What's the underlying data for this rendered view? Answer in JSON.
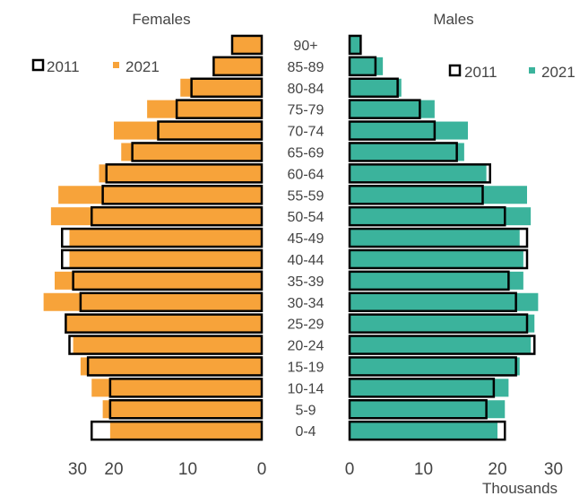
{
  "chart_data": {
    "type": "bar",
    "subtype": "population-pyramid",
    "xlabel": "Thousands",
    "axis_range": [
      0,
      30
    ],
    "ticks": [
      "30",
      "20",
      "10",
      "0"
    ],
    "ticks_right": [
      "0",
      "10",
      "20",
      "30"
    ],
    "age_groups": [
      "90+",
      "85-89",
      "80-84",
      "75-79",
      "70-74",
      "65-69",
      "60-64",
      "55-59",
      "50-54",
      "45-49",
      "40-44",
      "35-39",
      "30-34",
      "25-29",
      "20-24",
      "15-19",
      "10-14",
      "5-9",
      "0-4"
    ],
    "panels": [
      {
        "title": "Females",
        "side": "left",
        "legend": {
          "label_2011": "2011",
          "label_2021": "2021"
        },
        "fill_color": "#F7A33A",
        "series": [
          {
            "name": "2011",
            "style": "outline",
            "values": [
              4,
              6.5,
              9.5,
              11.5,
              14,
              17.5,
              21,
              21.5,
              23,
              27,
              27,
              25.5,
              24.5,
              26.5,
              26,
              23.5,
              20.5,
              20.5,
              23
            ]
          },
          {
            "name": "2021",
            "style": "fill",
            "values": [
              4,
              6.5,
              11,
              15.5,
              20,
              19,
              22,
              27.5,
              28.5,
              26,
              26,
              28,
              29.5,
              26.5,
              25.5,
              24.5,
              23,
              21.5,
              20.5
            ]
          }
        ]
      },
      {
        "title": "Males",
        "side": "right",
        "legend": {
          "label_2011": "2011",
          "label_2021": "2021"
        },
        "fill_color": "#3BB39C",
        "series": [
          {
            "name": "2011",
            "style": "outline",
            "values": [
              1.5,
              3.5,
              6.5,
              9.5,
              11.5,
              14.5,
              19,
              18,
              21,
              24,
              24,
              21.5,
              22.5,
              24,
              25,
              22.5,
              19.5,
              18.5,
              21
            ]
          },
          {
            "name": "2021",
            "style": "fill",
            "values": [
              1.5,
              4.5,
              7,
              11.5,
              16,
              15.5,
              18.5,
              24,
              24.5,
              23,
              23.5,
              23.5,
              25.5,
              25,
              24.5,
              23,
              21.5,
              21,
              20
            ]
          }
        ]
      }
    ]
  }
}
